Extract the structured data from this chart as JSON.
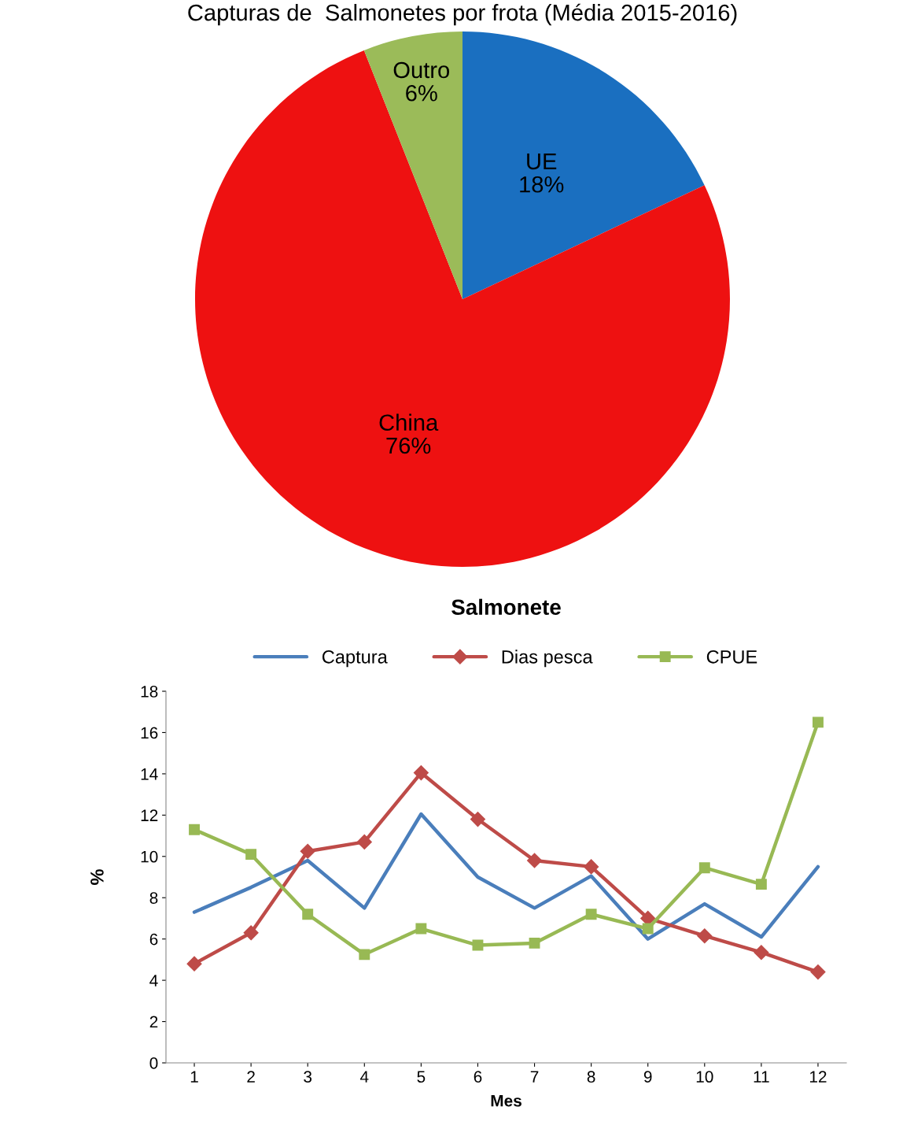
{
  "chart_data": [
    {
      "type": "pie",
      "title": "Capturas de  Salmonetes por frota (Média 2015-2016)",
      "categories": [
        "UE",
        "China",
        "Outro"
      ],
      "values": [
        18,
        76,
        6
      ],
      "colors": [
        "#1a6fc0",
        "#ee1111",
        "#9bbb59"
      ],
      "value_labels": [
        "18%",
        "76%",
        "6%"
      ]
    },
    {
      "type": "line",
      "title": "Salmonete",
      "xlabel": "Mes",
      "ylabel": "%",
      "categories": [
        "1",
        "2",
        "3",
        "4",
        "5",
        "6",
        "7",
        "8",
        "9",
        "10",
        "11",
        "12"
      ],
      "ylim": [
        0,
        18
      ],
      "yticks": [
        0,
        2,
        4,
        6,
        8,
        10,
        12,
        14,
        16,
        18
      ],
      "grid": false,
      "legend": "top",
      "series": [
        {
          "name": "Captura",
          "color": "#4a7ebb",
          "marker": "none",
          "values": [
            7.3,
            8.5,
            9.8,
            7.5,
            12.05,
            9.0,
            7.5,
            9.05,
            6.0,
            7.7,
            6.1,
            9.5
          ]
        },
        {
          "name": "Dias pesca",
          "color": "#be4b48",
          "marker": "diamond",
          "values": [
            4.8,
            6.3,
            10.25,
            10.7,
            14.05,
            11.8,
            9.8,
            9.5,
            7.0,
            6.15,
            5.35,
            4.4
          ]
        },
        {
          "name": "CPUE",
          "color": "#98b954",
          "marker": "square",
          "values": [
            11.3,
            10.1,
            7.2,
            5.25,
            6.5,
            5.7,
            5.8,
            7.2,
            6.5,
            9.45,
            8.65,
            16.5
          ]
        }
      ]
    }
  ]
}
